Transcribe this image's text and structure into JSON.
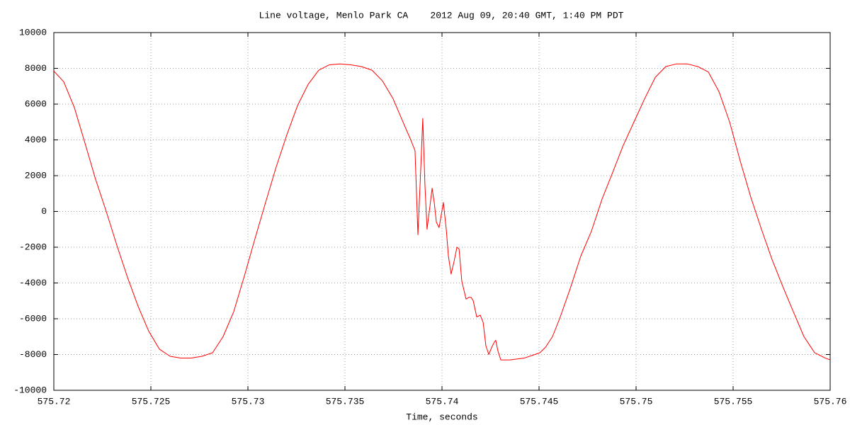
{
  "chart_data": {
    "type": "line",
    "title": "Line voltage, Menlo Park CA    2012 Aug 09, 20:40 GMT, 1:40 PM PDT",
    "x_label": "Time, seconds",
    "xlim": [
      575.72,
      575.76
    ],
    "xticks": [
      575.72,
      575.725,
      575.73,
      575.735,
      575.74,
      575.745,
      575.75,
      575.755,
      575.76
    ],
    "ylim": [
      -10000,
      10000
    ],
    "yticks": [
      -10000,
      -8000,
      -6000,
      -4000,
      -2000,
      0,
      2000,
      4000,
      6000,
      8000,
      10000
    ],
    "grid": true,
    "color": "#ff0000",
    "x": [
      575.72,
      575.72051,
      575.72106,
      575.72161,
      575.72215,
      575.7227,
      575.72325,
      575.7238,
      575.72434,
      575.72489,
      575.72544,
      575.72599,
      575.72653,
      575.72708,
      575.72763,
      575.72818,
      575.72872,
      575.72927,
      575.72982,
      575.73037,
      575.73091,
      575.73146,
      575.73201,
      575.73255,
      575.7331,
      575.73365,
      575.7342,
      575.73474,
      575.73529,
      575.73584,
      575.73639,
      575.73693,
      575.73748,
      575.73803,
      575.73839,
      575.73861,
      575.73876,
      575.73891,
      575.73901,
      575.73912,
      575.73923,
      575.73938,
      575.73949,
      575.7396,
      575.73971,
      575.73985,
      575.74007,
      575.74022,
      575.74033,
      575.74047,
      575.74062,
      575.74077,
      575.74088,
      575.74102,
      575.74124,
      575.74139,
      575.7415,
      575.74161,
      575.74179,
      575.74197,
      575.74212,
      575.74226,
      575.74241,
      575.74256,
      575.7427,
      575.74277,
      575.74288,
      575.74303,
      575.7435,
      575.74423,
      575.74478,
      575.74504,
      575.74533,
      575.74569,
      575.74606,
      575.74661,
      575.74715,
      575.7477,
      575.74825,
      575.7488,
      575.74934,
      575.74989,
      575.75044,
      575.75099,
      575.75153,
      575.75208,
      575.75263,
      575.75318,
      575.75372,
      575.75427,
      575.75482,
      575.75537,
      575.75591,
      575.75646,
      575.75701,
      575.75756,
      575.7581,
      575.75865,
      575.7592,
      575.75975,
      575.76
    ],
    "values": [
      7850,
      7250,
      5800,
      3800,
      1800,
      0,
      -1900,
      -3700,
      -5300,
      -6700,
      -7700,
      -8100,
      -8200,
      -8200,
      -8100,
      -7900,
      -7000,
      -5600,
      -3600,
      -1500,
      500,
      2500,
      4300,
      5900,
      7100,
      7900,
      8200,
      8250,
      8200,
      8100,
      7900,
      7300,
      6300,
      4900,
      4000,
      3400,
      -1300,
      2500,
      5200,
      1500,
      -1000,
      300,
      1300,
      500,
      -600,
      -900,
      500,
      -1000,
      -2500,
      -3500,
      -2800,
      -2000,
      -2100,
      -3900,
      -4900,
      -4800,
      -4800,
      -5000,
      -5900,
      -5800,
      -6200,
      -7500,
      -8000,
      -7600,
      -7300,
      -7200,
      -7800,
      -8300,
      -8300,
      -8200,
      -8000,
      -7900,
      -7600,
      -7000,
      -6000,
      -4300,
      -2500,
      -1100,
      700,
      2200,
      3700,
      5000,
      6300,
      7500,
      8100,
      8250,
      8250,
      8100,
      7800,
      6700,
      5000,
      2800,
      800,
      -1000,
      -2700,
      -4200,
      -5600,
      -7000,
      -7900,
      -8200,
      -8300
    ]
  }
}
